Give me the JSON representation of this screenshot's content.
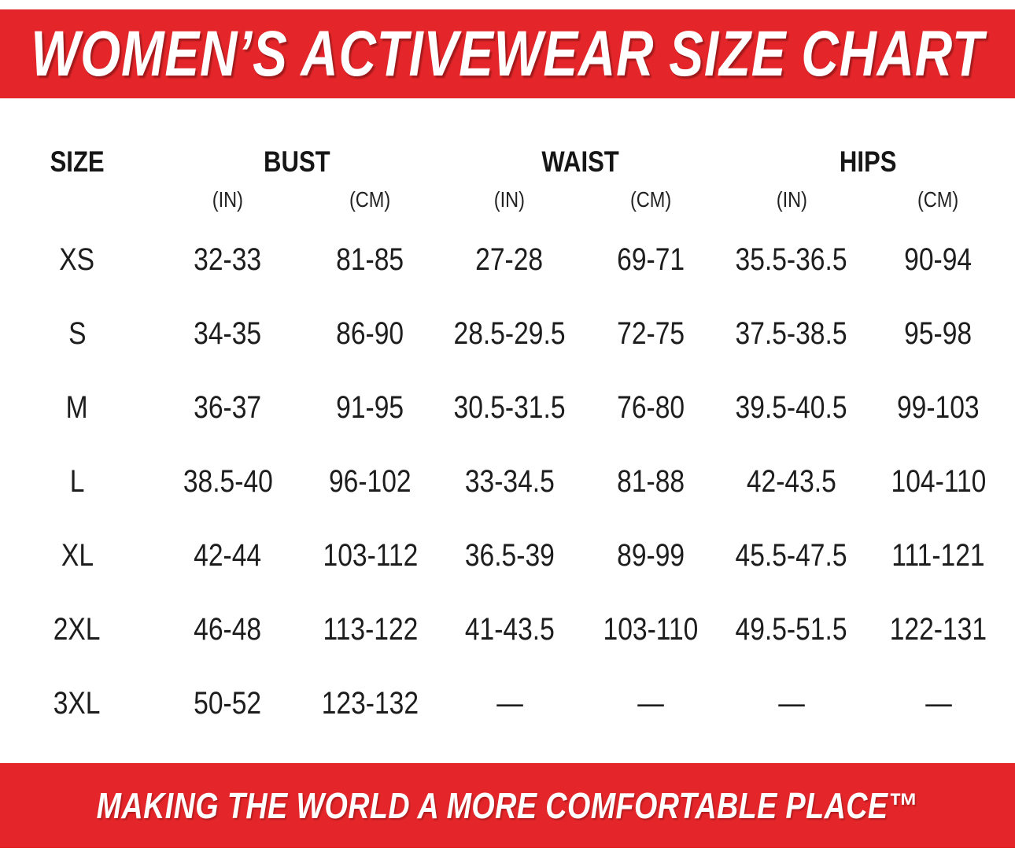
{
  "banner_top": {
    "title": "WOMEN’S ACTIVEWEAR SIZE CHART",
    "bg_color": "#E4262A",
    "text_color": "#FFFFFF"
  },
  "banner_bottom": {
    "tagline": "MAKING THE WORLD A MORE COMFORTABLE PLACE™",
    "bg_color": "#E4262A",
    "text_color": "#FFFFFF"
  },
  "chart_data": {
    "type": "table",
    "title": "WOMEN’S ACTIVEWEAR SIZE CHART",
    "column_groups": [
      {
        "label": "SIZE",
        "span": 1,
        "units": []
      },
      {
        "label": "BUST",
        "span": 2,
        "units": [
          "(IN)",
          "(CM)"
        ]
      },
      {
        "label": "WAIST",
        "span": 2,
        "units": [
          "(IN)",
          "(CM)"
        ]
      },
      {
        "label": "HIPS",
        "span": 2,
        "units": [
          "(IN)",
          "(CM)"
        ]
      }
    ],
    "columns_flat": [
      "SIZE",
      "BUST (IN)",
      "BUST (CM)",
      "WAIST (IN)",
      "WAIST (CM)",
      "HIPS (IN)",
      "HIPS (CM)"
    ],
    "empty_cell": "—",
    "rows": [
      {
        "size": "XS",
        "values": [
          "32-33",
          "81-85",
          "27-28",
          "69-71",
          "35.5-36.5",
          "90-94"
        ]
      },
      {
        "size": "S",
        "values": [
          "34-35",
          "86-90",
          "28.5-29.5",
          "72-75",
          "37.5-38.5",
          "95-98"
        ]
      },
      {
        "size": "M",
        "values": [
          "36-37",
          "91-95",
          "30.5-31.5",
          "76-80",
          "39.5-40.5",
          "99-103"
        ]
      },
      {
        "size": "L",
        "values": [
          "38.5-40",
          "96-102",
          "33-34.5",
          "81-88",
          "42-43.5",
          "104-110"
        ]
      },
      {
        "size": "XL",
        "values": [
          "42-44",
          "103-112",
          "36.5-39",
          "89-99",
          "45.5-47.5",
          "111-121"
        ]
      },
      {
        "size": "2XL",
        "values": [
          "46-48",
          "113-122",
          "41-43.5",
          "103-110",
          "49.5-51.5",
          "122-131"
        ]
      },
      {
        "size": "3XL",
        "values": [
          "50-52",
          "123-132",
          "—",
          "—",
          "—",
          "—"
        ]
      }
    ]
  }
}
